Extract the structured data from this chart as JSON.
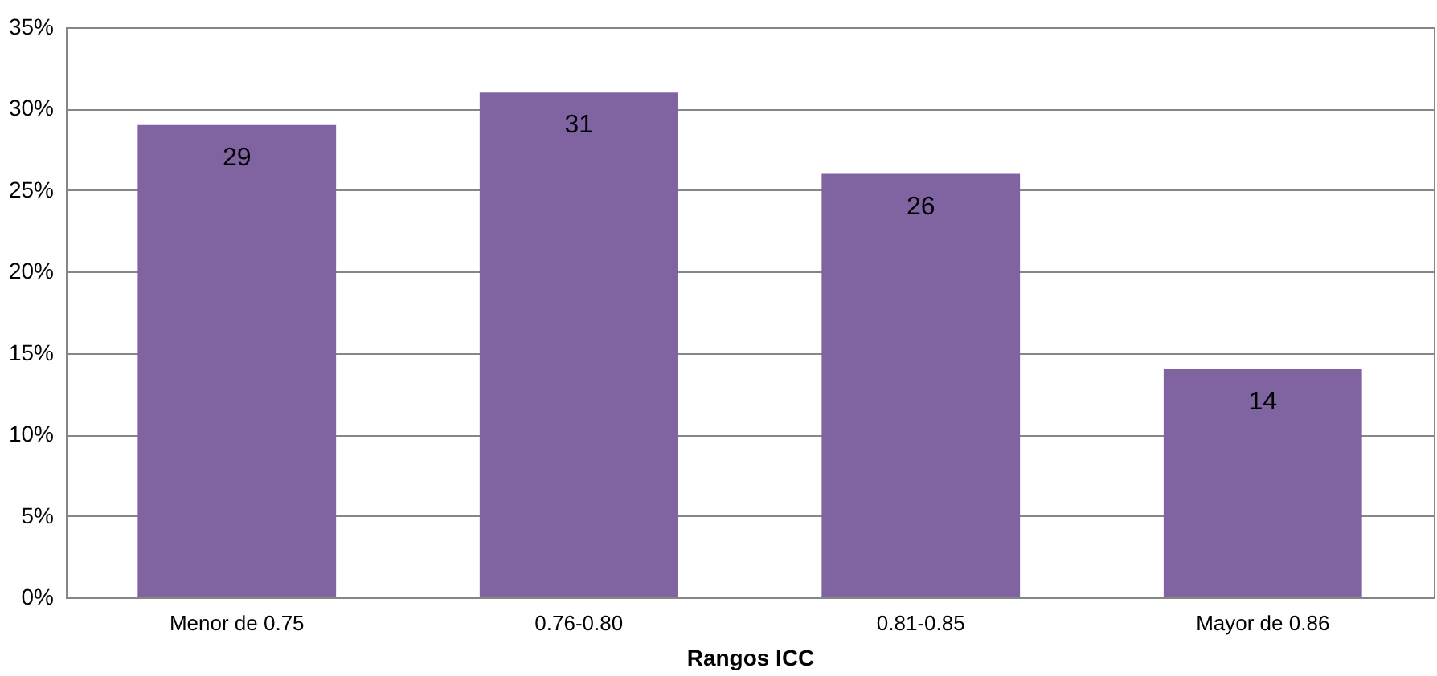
{
  "chart_data": {
    "type": "bar",
    "xlabel": "Rangos ICC",
    "categories": [
      "Menor de 0.75",
      "0.76-0.80",
      "0.81-0.85",
      "Mayor de 0.86"
    ],
    "values": [
      29,
      31,
      26,
      14
    ],
    "color": "#8064a2",
    "ylim": [
      0,
      35
    ],
    "yticks": [
      {
        "value": 0,
        "label": "0%"
      },
      {
        "value": 5,
        "label": "5%"
      },
      {
        "value": 10,
        "label": "10%"
      },
      {
        "value": 15,
        "label": "15%"
      },
      {
        "value": 20,
        "label": "20%"
      },
      {
        "value": 25,
        "label": "25%"
      },
      {
        "value": 30,
        "label": "30%"
      },
      {
        "value": 35,
        "label": "35%"
      }
    ],
    "grid": "y",
    "data_labels": true
  }
}
